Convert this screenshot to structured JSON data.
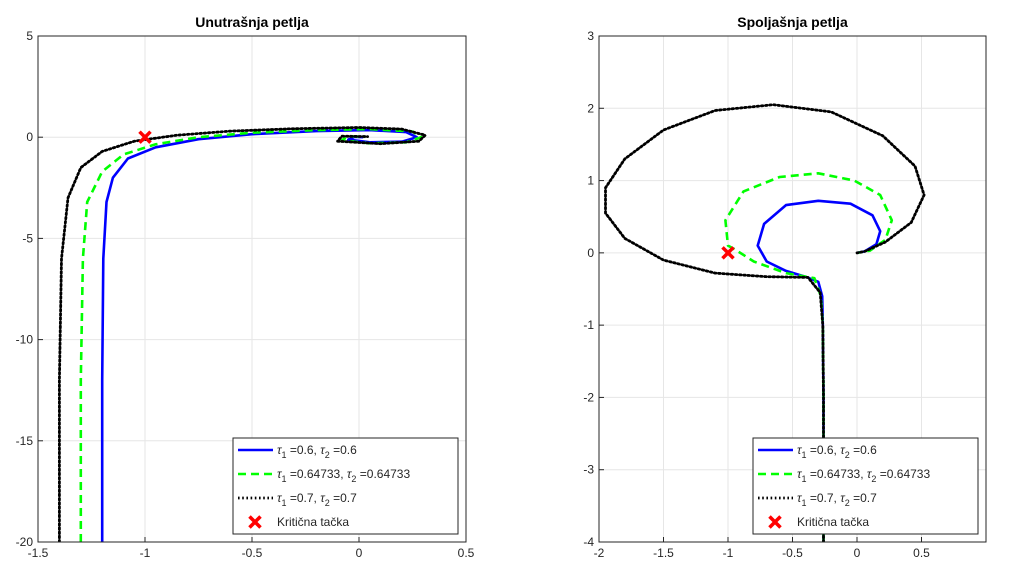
{
  "chart_data": [
    {
      "type": "line",
      "title": "Unutrašnja petlja",
      "xlabel": "",
      "ylabel": "",
      "xlim": [
        -1.5,
        0.5
      ],
      "ylim": [
        -20,
        5
      ],
      "x_ticks": [
        -1.5,
        -1,
        -0.5,
        0,
        0.5
      ],
      "x_tick_labels": [
        "-1.5",
        "-1",
        "-0.5",
        "0",
        "0.5"
      ],
      "y_ticks": [
        5,
        0,
        -5,
        -10,
        -15,
        -20
      ],
      "y_tick_labels": [
        "5",
        "0",
        "-5",
        "-10",
        "-15",
        "-20"
      ],
      "grid": true,
      "legend_position": "bottom-right",
      "series": [
        {
          "label_tau1": "=0.6,",
          "label_tau2": "=0.6",
          "color": "#0000ff",
          "style": "solid",
          "points": [
            [
              -1.2,
              -20
            ],
            [
              -1.2,
              -12
            ],
            [
              -1.195,
              -6
            ],
            [
              -1.18,
              -3.2
            ],
            [
              -1.15,
              -2
            ],
            [
              -1.08,
              -1.05
            ],
            [
              -0.95,
              -0.5
            ],
            [
              -0.75,
              -0.1
            ],
            [
              -0.5,
              0.15
            ],
            [
              -0.2,
              0.3
            ],
            [
              0.05,
              0.35
            ],
            [
              0.22,
              0.25
            ],
            [
              0.27,
              0.0
            ],
            [
              0.2,
              -0.22
            ],
            [
              0.05,
              -0.25
            ],
            [
              -0.05,
              -0.12
            ],
            [
              -0.02,
              0.02
            ],
            [
              0.02,
              0.0
            ]
          ]
        },
        {
          "label_tau1": "=0.64733,",
          "label_tau2": "=0.64733",
          "color": "#00ff00",
          "style": "dashed",
          "points": [
            [
              -1.3,
              -20
            ],
            [
              -1.3,
              -12
            ],
            [
              -1.29,
              -6
            ],
            [
              -1.27,
              -3.2
            ],
            [
              -1.2,
              -1.7
            ],
            [
              -1.1,
              -0.85
            ],
            [
              -0.95,
              -0.35
            ],
            [
              -0.75,
              0.0
            ],
            [
              -0.5,
              0.22
            ],
            [
              -0.2,
              0.35
            ],
            [
              0.05,
              0.4
            ],
            [
              0.25,
              0.28
            ],
            [
              0.29,
              0.0
            ],
            [
              0.22,
              -0.25
            ],
            [
              0.05,
              -0.3
            ],
            [
              -0.08,
              -0.15
            ],
            [
              -0.05,
              0.05
            ],
            [
              0.03,
              0.02
            ]
          ]
        },
        {
          "label_tau1": "=0.7,",
          "label_tau2": "=0.7",
          "color": "#000000",
          "style": "dotted",
          "points": [
            [
              -1.4,
              -20
            ],
            [
              -1.4,
              -12
            ],
            [
              -1.39,
              -6
            ],
            [
              -1.36,
              -3
            ],
            [
              -1.3,
              -1.5
            ],
            [
              -1.2,
              -0.7
            ],
            [
              -1.05,
              -0.2
            ],
            [
              -0.85,
              0.1
            ],
            [
              -0.6,
              0.3
            ],
            [
              -0.3,
              0.42
            ],
            [
              0.0,
              0.48
            ],
            [
              0.2,
              0.4
            ],
            [
              0.31,
              0.1
            ],
            [
              0.28,
              -0.2
            ],
            [
              0.1,
              -0.32
            ],
            [
              -0.1,
              -0.2
            ],
            [
              -0.08,
              0.05
            ],
            [
              0.04,
              0.03
            ]
          ]
        }
      ],
      "marker": {
        "label": "Kritična tačka",
        "x": -1,
        "y": 0,
        "color": "#ff0000",
        "symbol": "x"
      }
    },
    {
      "type": "line",
      "title": "Spoljašnja petlja",
      "xlabel": "",
      "ylabel": "",
      "xlim": [
        -2,
        1
      ],
      "ylim": [
        -4,
        3
      ],
      "x_ticks": [
        -2,
        -1.5,
        -1,
        -0.5,
        0,
        0.5
      ],
      "x_tick_labels": [
        "-2",
        "-1.5",
        "-1",
        "-0.5",
        "0",
        "0.5"
      ],
      "y_ticks": [
        3,
        2,
        1,
        0,
        -1,
        -2,
        -3,
        -4
      ],
      "y_tick_labels": [
        "3",
        "2",
        "1",
        "0",
        "-1",
        "-2",
        "-3",
        "-4"
      ],
      "grid": true,
      "legend_position": "bottom-right",
      "series": [
        {
          "label_tau1": "=0.6,",
          "label_tau2": "=0.6",
          "color": "#0000ff",
          "style": "solid",
          "points": [
            [
              -0.26,
              -4
            ],
            [
              -0.26,
              -2
            ],
            [
              -0.265,
              -1
            ],
            [
              -0.27,
              -0.6
            ],
            [
              -0.3,
              -0.4
            ],
            [
              -0.4,
              -0.33
            ],
            [
              -0.55,
              -0.25
            ],
            [
              -0.7,
              -0.12
            ],
            [
              -0.77,
              0.1
            ],
            [
              -0.72,
              0.4
            ],
            [
              -0.55,
              0.66
            ],
            [
              -0.3,
              0.72
            ],
            [
              -0.05,
              0.68
            ],
            [
              0.12,
              0.52
            ],
            [
              0.18,
              0.3
            ],
            [
              0.15,
              0.12
            ],
            [
              0.06,
              0.02
            ],
            [
              0.0,
              0.0
            ]
          ]
        },
        {
          "label_tau1": "=0.64733,",
          "label_tau2": "=0.64733",
          "color": "#00ff00",
          "style": "dashed",
          "points": [
            [
              -0.26,
              -4
            ],
            [
              -0.26,
              -2
            ],
            [
              -0.265,
              -1
            ],
            [
              -0.28,
              -0.6
            ],
            [
              -0.33,
              -0.35
            ],
            [
              -0.55,
              -0.28
            ],
            [
              -0.8,
              -0.12
            ],
            [
              -0.95,
              0.05
            ],
            [
              -1.0,
              0.1
            ],
            [
              -1.02,
              0.45
            ],
            [
              -0.88,
              0.85
            ],
            [
              -0.6,
              1.05
            ],
            [
              -0.3,
              1.1
            ],
            [
              -0.02,
              1.0
            ],
            [
              0.18,
              0.8
            ],
            [
              0.27,
              0.45
            ],
            [
              0.22,
              0.18
            ],
            [
              0.1,
              0.03
            ],
            [
              0.0,
              0.0
            ]
          ]
        },
        {
          "label_tau1": "=0.7,",
          "label_tau2": "=0.7",
          "color": "#000000",
          "style": "dotted",
          "points": [
            [
              -0.26,
              -4
            ],
            [
              -0.26,
              -2
            ],
            [
              -0.265,
              -1
            ],
            [
              -0.285,
              -0.55
            ],
            [
              -0.38,
              -0.34
            ],
            [
              -0.7,
              -0.33
            ],
            [
              -1.1,
              -0.28
            ],
            [
              -1.5,
              -0.1
            ],
            [
              -1.8,
              0.2
            ],
            [
              -1.95,
              0.55
            ],
            [
              -1.95,
              0.9
            ],
            [
              -1.8,
              1.3
            ],
            [
              -1.5,
              1.7
            ],
            [
              -1.1,
              1.97
            ],
            [
              -0.65,
              2.05
            ],
            [
              -0.2,
              1.95
            ],
            [
              0.2,
              1.62
            ],
            [
              0.45,
              1.2
            ],
            [
              0.52,
              0.8
            ],
            [
              0.42,
              0.42
            ],
            [
              0.22,
              0.15
            ],
            [
              0.06,
              0.02
            ],
            [
              0.0,
              0.0
            ]
          ]
        }
      ],
      "marker": {
        "label": "Kritična tačka",
        "x": -1,
        "y": 0,
        "color": "#ff0000",
        "symbol": "x"
      }
    }
  ]
}
